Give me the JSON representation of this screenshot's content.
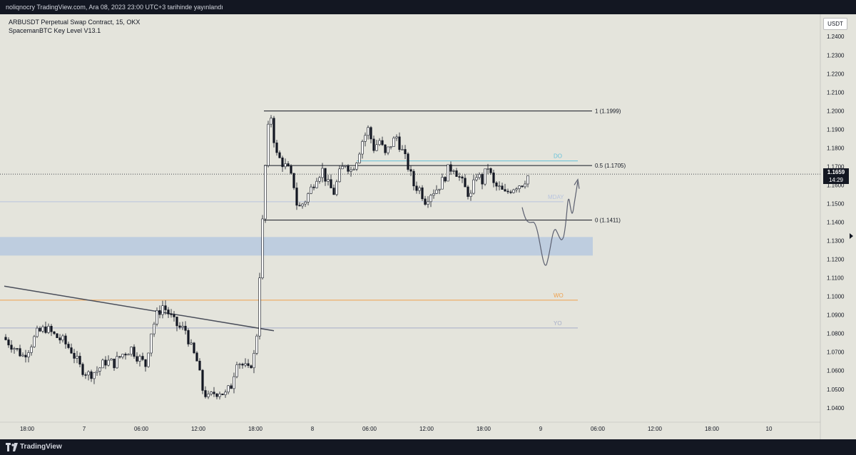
{
  "header": {
    "publish_line": "noliqnocry TradingView.com, Ara 08, 2023 23:00 UTC+3 tarihinde yayınlandı"
  },
  "legend": {
    "symbol_line": "ARBUSDT Perpetual Swap Contract, 15, OKX",
    "indicator_line": "SpacemanBTC Key Level V13.1"
  },
  "price_axis": {
    "currency": "USDT"
  },
  "last_price": {
    "value": "1.1659",
    "countdown": "14:29"
  },
  "footer": {
    "brand": "TradingView"
  },
  "chart_data": {
    "type": "candlestick",
    "y_ticks": [
      "1.2400",
      "1.2300",
      "1.2200",
      "1.2100",
      "1.2000",
      "1.1900",
      "1.1800",
      "1.1700",
      "1.1600",
      "1.1500",
      "1.1400",
      "1.1300",
      "1.1200",
      "1.1100",
      "1.1000",
      "1.0900",
      "1.0800",
      "1.0700",
      "1.0600",
      "1.0500",
      "1.0400"
    ],
    "x_ticks": [
      "18:00",
      "7",
      "06:00",
      "12:00",
      "18:00",
      "8",
      "06:00",
      "12:00",
      "18:00",
      "9",
      "06:00",
      "12:00",
      "18:00",
      "10"
    ],
    "ylim": [
      1.033,
      1.252
    ],
    "price_path": [
      [
        0,
        1.078
      ],
      [
        3,
        1.074
      ],
      [
        7,
        1.068
      ],
      [
        9,
        1.072
      ],
      [
        12,
        1.08
      ],
      [
        15,
        1.083
      ],
      [
        18,
        1.079
      ],
      [
        21,
        1.076
      ],
      [
        24,
        1.071
      ],
      [
        27,
        1.062
      ],
      [
        30,
        1.058
      ],
      [
        33,
        1.06
      ],
      [
        36,
        1.065
      ],
      [
        39,
        1.064
      ],
      [
        42,
        1.069
      ],
      [
        45,
        1.072
      ],
      [
        47,
        1.068
      ],
      [
        50,
        1.063
      ],
      [
        52,
        1.081
      ],
      [
        54,
        1.09
      ],
      [
        56,
        1.095
      ],
      [
        58,
        1.091
      ],
      [
        60,
        1.086
      ],
      [
        62,
        1.083
      ],
      [
        64,
        1.082
      ],
      [
        66,
        1.072
      ],
      [
        68,
        1.065
      ],
      [
        70,
        1.05
      ],
      [
        72,
        1.045
      ],
      [
        74,
        1.048
      ],
      [
        76,
        1.049
      ],
      [
        78,
        1.047
      ],
      [
        80,
        1.052
      ],
      [
        82,
        1.066
      ],
      [
        84,
        1.063
      ],
      [
        86,
        1.06
      ],
      [
        88,
        1.068
      ],
      [
        89,
        1.08
      ],
      [
        90,
        1.112
      ],
      [
        91,
        1.14
      ],
      [
        92,
        1.17
      ],
      [
        93,
        1.19
      ],
      [
        94,
        1.197
      ],
      [
        95,
        1.185
      ],
      [
        96,
        1.176
      ],
      [
        98,
        1.172
      ],
      [
        100,
        1.168
      ],
      [
        102,
        1.16
      ],
      [
        103,
        1.15
      ],
      [
        104,
        1.148
      ],
      [
        106,
        1.152
      ],
      [
        108,
        1.158
      ],
      [
        110,
        1.165
      ],
      [
        112,
        1.168
      ],
      [
        114,
        1.16
      ],
      [
        116,
        1.156
      ],
      [
        118,
        1.166
      ],
      [
        120,
        1.172
      ],
      [
        122,
        1.168
      ],
      [
        124,
        1.174
      ],
      [
        126,
        1.184
      ],
      [
        128,
        1.19
      ],
      [
        130,
        1.18
      ],
      [
        132,
        1.184
      ],
      [
        134,
        1.176
      ],
      [
        136,
        1.182
      ],
      [
        138,
        1.186
      ],
      [
        140,
        1.178
      ],
      [
        142,
        1.17
      ],
      [
        144,
        1.16
      ],
      [
        146,
        1.158
      ],
      [
        148,
        1.152
      ],
      [
        150,
        1.156
      ],
      [
        152,
        1.158
      ],
      [
        154,
        1.162
      ],
      [
        156,
        1.168
      ],
      [
        158,
        1.17
      ],
      [
        160,
        1.164
      ],
      [
        162,
        1.158
      ],
      [
        164,
        1.154
      ],
      [
        166,
        1.166
      ],
      [
        168,
        1.162
      ],
      [
        170,
        1.17
      ],
      [
        172,
        1.16
      ],
      [
        174,
        1.158
      ],
      [
        176,
        1.155
      ],
      [
        178,
        1.158
      ],
      [
        180,
        1.16
      ],
      [
        182,
        1.161
      ],
      [
        184,
        1.165
      ]
    ],
    "horizontal_levels": [
      {
        "price": 1.1999,
        "label": "1 (1.1999)",
        "color": "#131722"
      },
      {
        "price": 1.1705,
        "label": "0.5 (1.1705)",
        "color": "#131722"
      },
      {
        "price": 1.1411,
        "label": "0 (1.1411)",
        "color": "#131722"
      },
      {
        "price": 1.173,
        "label": "DO",
        "color": "#66c2d9"
      },
      {
        "price": 1.151,
        "label": "MDAY",
        "color": "#b8c4de"
      },
      {
        "price": 1.098,
        "label": "WO",
        "color": "#f0a04b"
      },
      {
        "price": 1.083,
        "label": "YO",
        "color": "#a6adc8"
      }
    ],
    "zone": {
      "from": 1.122,
      "to": 1.132,
      "color": "#b7c9df"
    },
    "last_price_line": 1.1659,
    "colors": {
      "background": "#e4e4dc",
      "candle": "#131722",
      "drawing": "#787b86"
    }
  }
}
